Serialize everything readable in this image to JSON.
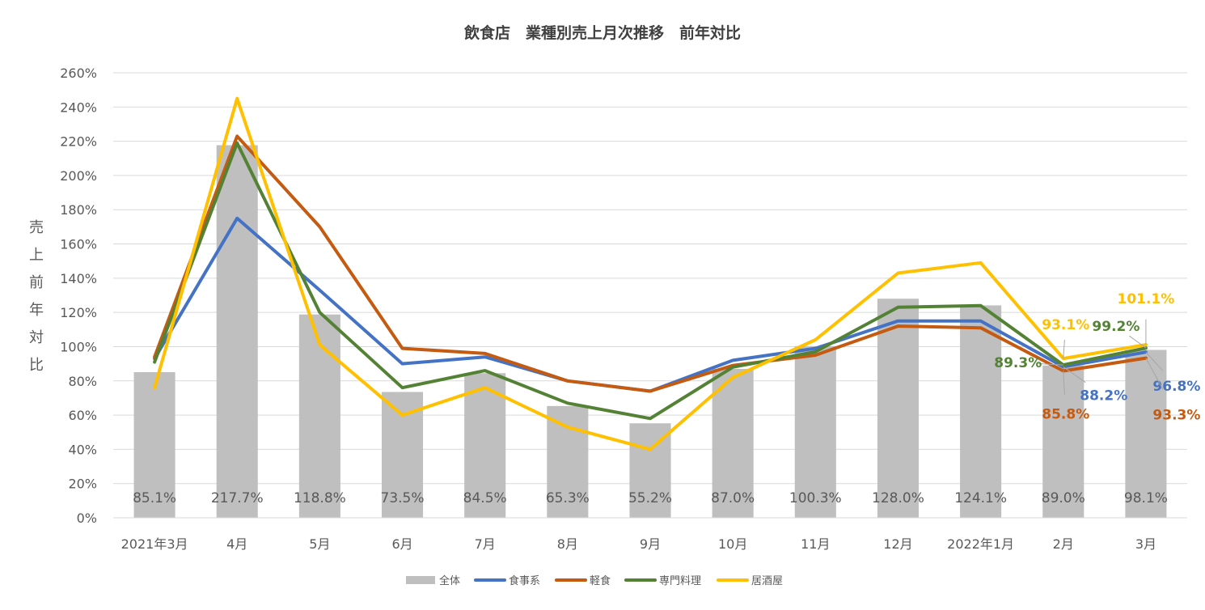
{
  "chart_data": {
    "type": "bar",
    "title": "飲食店　業種別売上月次推移　前年対比",
    "ylabel": "売上前年対比",
    "ylim": [
      0,
      260
    ],
    "yticks": [
      "0%",
      "20%",
      "40%",
      "60%",
      "80%",
      "100%",
      "120%",
      "140%",
      "160%",
      "180%",
      "200%",
      "220%",
      "240%",
      "260%"
    ],
    "categories": [
      "2021年3月",
      "4月",
      "5月",
      "6月",
      "7月",
      "8月",
      "9月",
      "10月",
      "11月",
      "12月",
      "2022年1月",
      "2月",
      "3月"
    ],
    "grid": true,
    "legend_position": "bottom",
    "series": [
      {
        "name": "全体",
        "type": "bar",
        "color": "#bfbfbf",
        "values": [
          85.1,
          217.7,
          118.8,
          73.5,
          84.5,
          65.3,
          55.2,
          87.0,
          100.3,
          128.0,
          124.1,
          89.0,
          98.1
        ],
        "labels": [
          "85.1%",
          "217.7%",
          "118.8%",
          "73.5%",
          "84.5%",
          "65.3%",
          "55.2%",
          "87.0%",
          "100.3%",
          "128.0%",
          "124.1%",
          "89.0%",
          "98.1%"
        ]
      },
      {
        "name": "食事系",
        "type": "line",
        "color": "#4472c4",
        "values": [
          93,
          175,
          133,
          90,
          94,
          80,
          74,
          92,
          99,
          115,
          115,
          88.2,
          96.8
        ],
        "point_labels": [
          {
            "index": 11,
            "text": "88.2%"
          },
          {
            "index": 12,
            "text": "96.8%"
          }
        ]
      },
      {
        "name": "軽食",
        "type": "line",
        "color": "#c55a11",
        "values": [
          94,
          223,
          170,
          99,
          96,
          80,
          74,
          89,
          95,
          112,
          111,
          85.8,
          93.3
        ],
        "point_labels": [
          {
            "index": 11,
            "text": "85.8%"
          },
          {
            "index": 12,
            "text": "93.3%"
          }
        ]
      },
      {
        "name": "専門料理",
        "type": "line",
        "color": "#548235",
        "values": [
          91,
          219,
          120,
          76,
          86,
          67,
          58,
          88,
          97,
          123,
          124,
          89.3,
          99.2
        ],
        "point_labels": [
          {
            "index": 11,
            "text": "89.3%"
          },
          {
            "index": 12,
            "text": "99.2%"
          }
        ]
      },
      {
        "name": "居酒屋",
        "type": "line",
        "color": "#ffc000",
        "values": [
          76,
          245,
          101,
          60,
          76,
          53,
          40,
          82,
          104,
          143,
          149,
          93.1,
          101.1
        ],
        "point_labels": [
          {
            "index": 11,
            "text": "93.1%"
          },
          {
            "index": 12,
            "text": "101.1%"
          }
        ]
      }
    ]
  }
}
